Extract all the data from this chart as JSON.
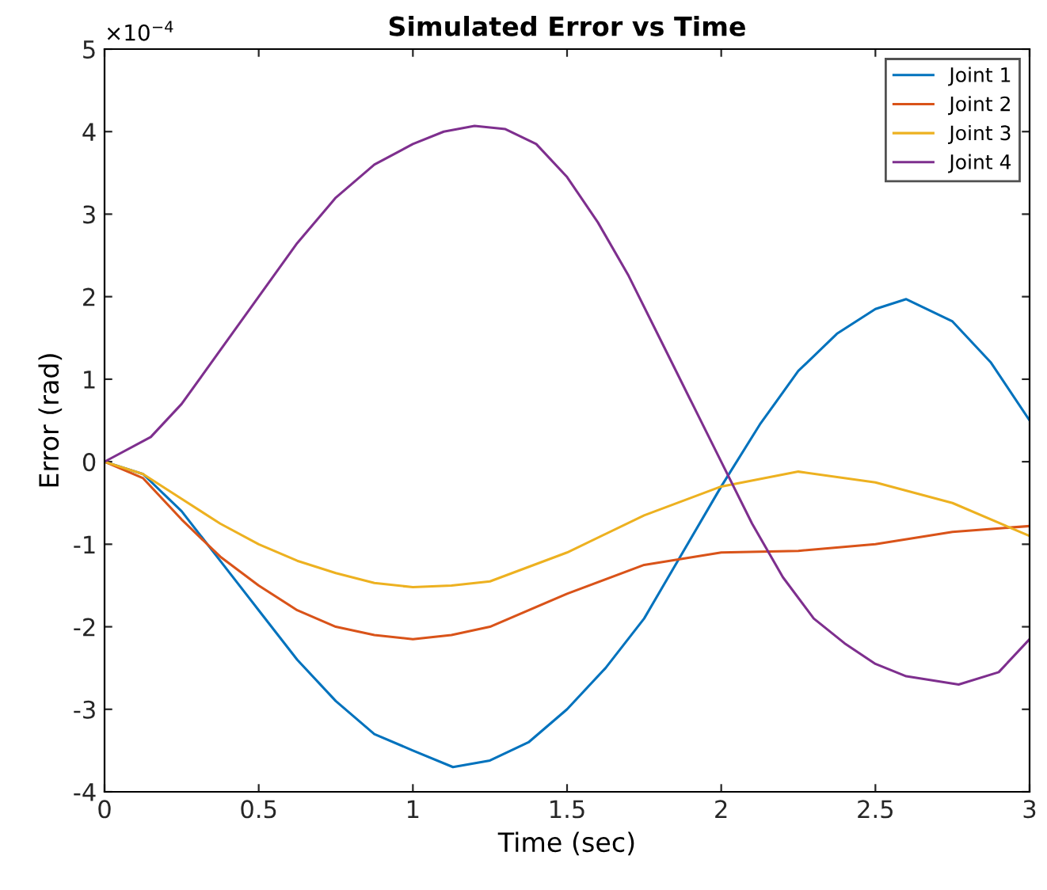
{
  "chart_data": {
    "type": "line",
    "title": "Simulated Error vs Time",
    "xlabel": "Time (sec)",
    "ylabel": "Error (rad)",
    "annotations": [
      "×10$^{−4}$"
    ],
    "series": [
      {
        "name": "Joint 1",
        "color": "#0072bd",
        "x": [
          0,
          0.125,
          0.25,
          0.375,
          0.5,
          0.625,
          0.75,
          0.875,
          1.0,
          1.13,
          1.25,
          1.375,
          1.5,
          1.625,
          1.75,
          1.875,
          2.0,
          2.125,
          2.25,
          2.375,
          2.5,
          2.6,
          2.75,
          2.875,
          3.0
        ],
        "values": [
          0,
          -0.15,
          -0.6,
          -1.2,
          -1.8,
          -2.4,
          -2.9,
          -3.3,
          -3.5,
          -3.7,
          -3.62,
          -3.4,
          -3.0,
          -2.5,
          -1.9,
          -1.1,
          -0.3,
          0.45,
          1.1,
          1.55,
          1.85,
          1.97,
          1.7,
          1.2,
          0.5
        ]
      },
      {
        "name": "Joint 2",
        "color": "#d95319",
        "x": [
          0,
          0.125,
          0.25,
          0.375,
          0.5,
          0.625,
          0.75,
          0.875,
          1.0,
          1.125,
          1.25,
          1.5,
          1.75,
          2.0,
          2.25,
          2.5,
          2.75,
          3.0
        ],
        "values": [
          0,
          -0.2,
          -0.7,
          -1.15,
          -1.5,
          -1.8,
          -2.0,
          -2.1,
          -2.15,
          -2.1,
          -2.0,
          -1.6,
          -1.25,
          -1.1,
          -1.08,
          -1.0,
          -0.85,
          -0.78
        ]
      },
      {
        "name": "Joint 3",
        "color": "#edb120",
        "x": [
          0,
          0.125,
          0.25,
          0.375,
          0.5,
          0.625,
          0.75,
          0.875,
          1.0,
          1.125,
          1.25,
          1.5,
          1.75,
          2.0,
          2.25,
          2.5,
          2.75,
          3.0
        ],
        "values": [
          0,
          -0.15,
          -0.45,
          -0.75,
          -1.0,
          -1.2,
          -1.35,
          -1.47,
          -1.52,
          -1.5,
          -1.45,
          -1.1,
          -0.65,
          -0.3,
          -0.12,
          -0.25,
          -0.5,
          -0.9
        ]
      },
      {
        "name": "Joint 4",
        "color": "#7e2f8e",
        "x": [
          0,
          0.15,
          0.25,
          0.375,
          0.5,
          0.625,
          0.75,
          0.875,
          1.0,
          1.1,
          1.2,
          1.3,
          1.4,
          1.5,
          1.6,
          1.7,
          1.8,
          1.9,
          2.0,
          2.1,
          2.2,
          2.3,
          2.4,
          2.5,
          2.6,
          2.77,
          2.9,
          3.0
        ],
        "values": [
          0,
          0.3,
          0.7,
          1.35,
          2.0,
          2.65,
          3.2,
          3.6,
          3.85,
          4.0,
          4.07,
          4.03,
          3.85,
          3.45,
          2.9,
          2.25,
          1.5,
          0.75,
          0,
          -0.75,
          -1.4,
          -1.9,
          -2.2,
          -2.45,
          -2.6,
          -2.7,
          -2.55,
          -2.15
        ]
      }
    ],
    "xlim": [
      0,
      3
    ],
    "xticks": [
      0,
      0.5,
      1,
      1.5,
      2,
      2.5,
      3
    ],
    "ylim": [
      -4,
      5
    ],
    "yticks": [
      -4,
      -3,
      -2,
      -1,
      0,
      1,
      2,
      3,
      4,
      5
    ],
    "grid": false,
    "legend": "top right"
  }
}
